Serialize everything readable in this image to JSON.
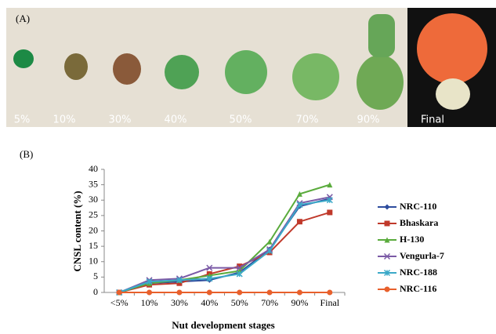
{
  "photo_panel": {
    "label": "(A)",
    "stages": [
      "5%",
      "10%",
      "30%",
      "40%",
      "50%",
      "70%",
      "90%",
      "Final"
    ]
  },
  "chart_data": {
    "type": "line",
    "panel_label": "(B)",
    "x_label": "Nut development stages",
    "y_label": "CNSL content (%)",
    "categories": [
      "<5%",
      "10%",
      "30%",
      "40%",
      "50%",
      "70%",
      "90%",
      "Final"
    ],
    "ylim": [
      0,
      40
    ],
    "yticks": [
      0,
      5,
      10,
      15,
      20,
      25,
      30,
      35,
      40
    ],
    "legend": "right",
    "series": [
      {
        "name": "NRC-110",
        "color": "#2e4d9e",
        "marker": "diamond",
        "values": [
          0,
          3,
          3.5,
          4,
          6.5,
          14,
          28,
          30.5
        ]
      },
      {
        "name": "Bhaskara",
        "color": "#c0392b",
        "marker": "square",
        "values": [
          0,
          2.5,
          3,
          6,
          8.5,
          13,
          23,
          26
        ]
      },
      {
        "name": "H-130",
        "color": "#5aab3c",
        "marker": "triangle",
        "values": [
          0,
          3,
          4,
          5.5,
          7,
          16.5,
          32,
          35
        ]
      },
      {
        "name": "Vengurla-7",
        "color": "#7b5aa6",
        "marker": "cross",
        "values": [
          0,
          4,
          4.5,
          8,
          8,
          14,
          29,
          31
        ]
      },
      {
        "name": "NRC-188",
        "color": "#3ba9c8",
        "marker": "star",
        "values": [
          0,
          3.5,
          4,
          4.5,
          6,
          13.5,
          28.5,
          30
        ]
      },
      {
        "name": "NRC-116",
        "color": "#e8602c",
        "marker": "circle",
        "values": [
          0,
          0,
          0,
          0,
          0,
          0,
          0,
          0
        ]
      }
    ]
  }
}
